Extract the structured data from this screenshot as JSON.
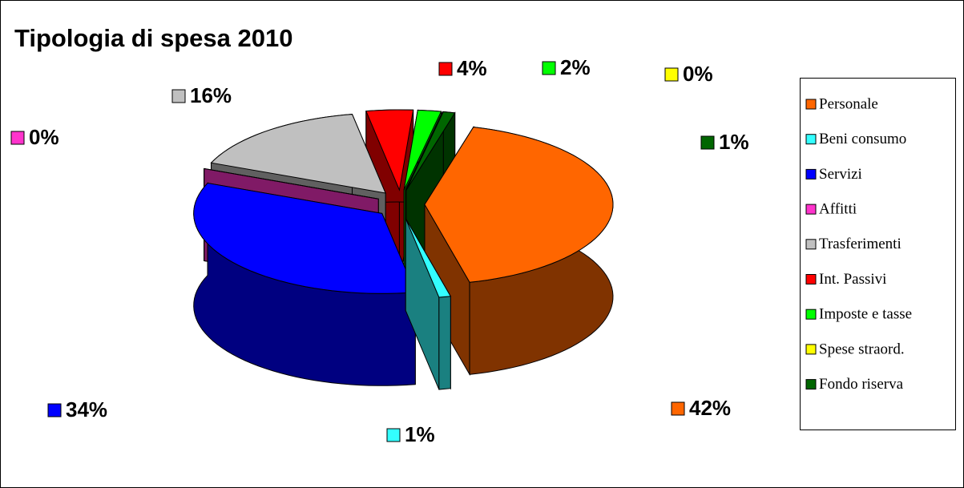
{
  "chart_data": {
    "type": "pie3d",
    "title": "Tipologia di spesa 2010",
    "categories": [
      "Personale",
      "Beni consumo",
      "Servizi",
      "Affitti",
      "Trasferimenti",
      "Int. Passivi",
      "Imposte e tasse",
      "Spese straord.",
      "Fondo riserva"
    ],
    "values": [
      42,
      1,
      34,
      0,
      16,
      4,
      2,
      0,
      1
    ],
    "value_labels": [
      "42%",
      "1%",
      "34%",
      "0%",
      "16%",
      "4%",
      "2%",
      "0%",
      "1%"
    ],
    "colors": [
      "#FF6600",
      "#33FFFF",
      "#0000FF",
      "#FF33CC",
      "#C0C0C0",
      "#FF0000",
      "#00FF00",
      "#FFFF00",
      "#006600"
    ],
    "legend": "right"
  }
}
